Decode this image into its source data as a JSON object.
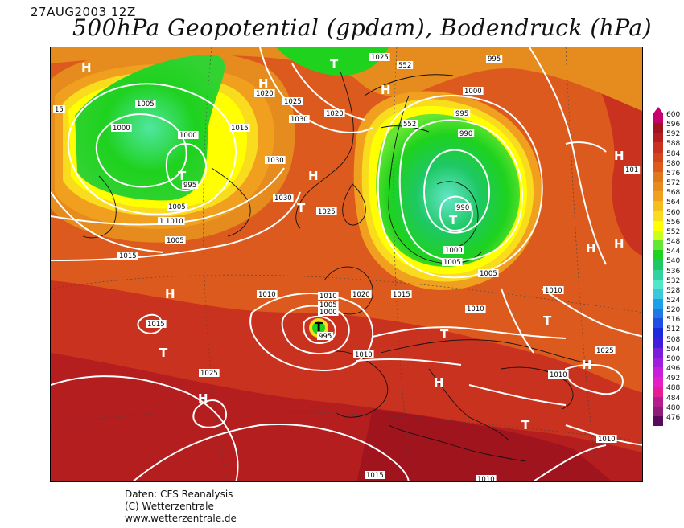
{
  "header": {
    "date": "27AUG2003 12Z",
    "title": "500hPa Geopotential (gpdam), Bodendruck (hPa)"
  },
  "footer": {
    "line1": "Daten: CFS Reanalysis",
    "line2": "(C) Wetterzentrale",
    "line3": "www.wetterzentrale.de"
  },
  "legend": {
    "labels": [
      "600",
      "596",
      "592",
      "588",
      "584",
      "580",
      "576",
      "572",
      "568",
      "564",
      "560",
      "556",
      "552",
      "548",
      "544",
      "540",
      "536",
      "532",
      "528",
      "524",
      "520",
      "516",
      "512",
      "508",
      "504",
      "500",
      "496",
      "492",
      "488",
      "484",
      "480",
      "476"
    ],
    "colors": [
      "#c8006e",
      "#a0141e",
      "#b41e1e",
      "#c8321e",
      "#d2461e",
      "#dc5a1e",
      "#e1781e",
      "#e68c1e",
      "#f0a01e",
      "#f5be1e",
      "#fadc1e",
      "#ffff00",
      "#c8ff1e",
      "#64e632",
      "#1ed21e",
      "#1ec864",
      "#32d2a0",
      "#50e6c8",
      "#3cc8dc",
      "#1ea0e6",
      "#1e78e6",
      "#1e50e6",
      "#1e28dc",
      "#3c1edc",
      "#781edc",
      "#a01edc",
      "#c81edc",
      "#e61ec8",
      "#e61e96",
      "#b41e8c",
      "#8c1e78",
      "#5a0a5a"
    ]
  },
  "map": {
    "pressure_labels": [
      "1025",
      "552",
      "1005",
      "1010",
      "1005",
      "1000",
      "1020",
      "1025",
      "1030",
      "1020",
      "1015",
      "1000",
      "995",
      "1000",
      "552",
      "995",
      "990",
      "995",
      "1005",
      "1010",
      "1030",
      "1030",
      "1025",
      "990",
      "1000",
      "1005",
      "1005",
      "1015",
      "1010",
      "1015",
      "1020",
      "1010",
      "1005",
      "1000",
      "995",
      "1015",
      "1010",
      "1010",
      "1025",
      "1025",
      "1010",
      "1010",
      "1010",
      "1010",
      "1015",
      "15",
      "101"
    ],
    "highs_lows": [
      "H",
      "H",
      "T",
      "H",
      "T",
      "H",
      "H",
      "T",
      "H",
      "H",
      "T",
      "T",
      "H",
      "T",
      "T",
      "T",
      "H",
      "H",
      "H",
      "T",
      "H",
      "H",
      "T",
      "T",
      "H",
      "H"
    ]
  }
}
